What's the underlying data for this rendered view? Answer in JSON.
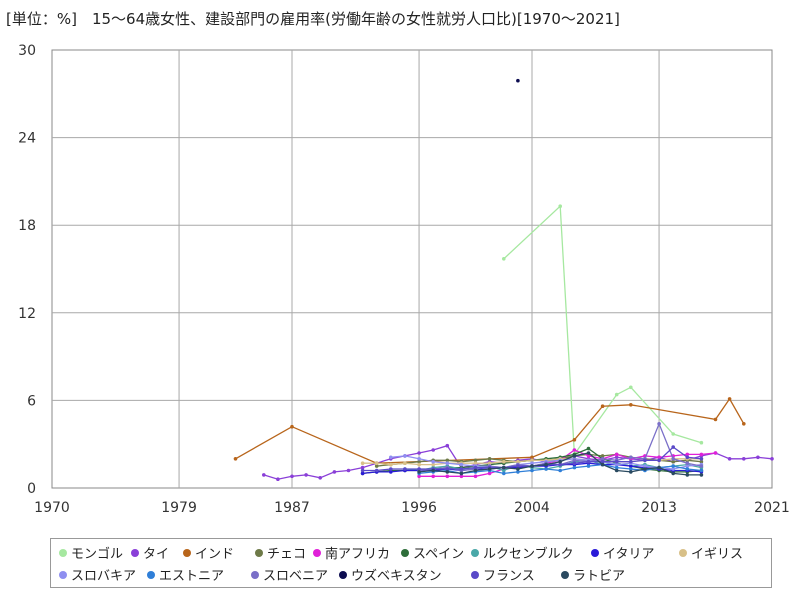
{
  "chart_data": {
    "type": "line",
    "title": "[単位：%]　15～64歳女性、建設部門の雇用率(労働年齢の女性就労人口比)[1970～2021]",
    "xlabel": "",
    "ylabel": "",
    "xlim": [
      1970,
      2021
    ],
    "ylim": [
      0,
      30
    ],
    "xticks": [
      "1970",
      "1979",
      "1987",
      "1996",
      "2004",
      "2013",
      "2021"
    ],
    "yticks": [
      "0",
      "6",
      "12",
      "18",
      "24",
      "30"
    ],
    "grid": true,
    "legend_position": "bottom",
    "series": [
      {
        "name": "モンゴル",
        "color": "#a6e8a0",
        "x": [
          2002,
          2006,
          2007,
          2010,
          2011,
          2014,
          2016
        ],
        "y": [
          15.7,
          19.3,
          2.3,
          6.4,
          6.9,
          3.7,
          3.1
        ]
      },
      {
        "name": "タイ",
        "color": "#8a3fd8",
        "x": [
          1985,
          1986,
          1987,
          1988,
          1989,
          1990,
          1991,
          1992,
          1993,
          1994,
          1995,
          1996,
          1997,
          1998,
          1999,
          2000,
          2001,
          2002,
          2003,
          2004,
          2005,
          2006,
          2007,
          2008,
          2009,
          2010,
          2011,
          2012,
          2013,
          2014,
          2015,
          2016,
          2017,
          2018,
          2019,
          2020,
          2021
        ],
        "y": [
          0.9,
          0.6,
          0.8,
          0.9,
          0.7,
          1.1,
          1.2,
          1.4,
          1.7,
          2.0,
          2.2,
          2.4,
          2.6,
          2.9,
          1.4,
          1.6,
          1.8,
          1.7,
          1.9,
          2.0,
          1.8,
          1.9,
          2.2,
          2.0,
          1.9,
          2.1,
          2.0,
          1.9,
          2.1,
          1.8,
          1.9,
          2.2,
          2.4,
          2.0,
          2.0,
          2.1,
          2.0
        ]
      },
      {
        "name": "インド",
        "color": "#b8651b",
        "x": [
          1983,
          1987,
          1993,
          2004,
          2007,
          2009,
          2011,
          2017,
          2018,
          2019
        ],
        "y": [
          2.0,
          4.2,
          1.7,
          2.1,
          3.3,
          5.6,
          5.7,
          4.7,
          6.1,
          4.4
        ]
      },
      {
        "name": "チェコ",
        "color": "#6e7a48",
        "x": [
          1993,
          1994,
          1995,
          1996,
          1997,
          1998,
          1999,
          2000,
          2001,
          2002,
          2003,
          2004,
          2005,
          2006,
          2007,
          2008,
          2009,
          2010,
          2011,
          2012,
          2013,
          2014,
          2015,
          2016
        ],
        "y": [
          1.5,
          1.6,
          1.7,
          1.8,
          1.9,
          1.9,
          1.8,
          1.9,
          2.0,
          1.9,
          1.8,
          1.9,
          1.9,
          2.0,
          2.2,
          2.3,
          2.2,
          2.3,
          2.1,
          2.0,
          1.9,
          1.8,
          1.9,
          1.8
        ]
      },
      {
        "name": "南アフリカ",
        "color": "#e020d8",
        "x": [
          1996,
          1997,
          1998,
          1999,
          2000,
          2001,
          2002,
          2003,
          2004,
          2005,
          2006,
          2007,
          2008,
          2009,
          2010,
          2011,
          2012,
          2013,
          2014,
          2015,
          2016,
          2017
        ],
        "y": [
          0.8,
          0.8,
          0.8,
          0.8,
          0.8,
          1.0,
          1.3,
          1.4,
          1.5,
          1.7,
          1.9,
          2.6,
          2.2,
          2.0,
          2.3,
          2.0,
          2.2,
          2.1,
          2.2,
          2.3,
          2.3,
          2.4
        ]
      },
      {
        "name": "スペイン",
        "color": "#2e6e3a",
        "x": [
          1992,
          1993,
          1994,
          1995,
          1996,
          1997,
          1998,
          1999,
          2000,
          2001,
          2002,
          2003,
          2004,
          2005,
          2006,
          2007,
          2008,
          2009,
          2010,
          2011,
          2012,
          2013,
          2014,
          2015,
          2016
        ],
        "y": [
          1.0,
          1.1,
          1.2,
          1.2,
          1.2,
          1.3,
          1.4,
          1.4,
          1.5,
          1.6,
          1.7,
          1.8,
          1.9,
          2.0,
          2.1,
          2.3,
          2.7,
          2.0,
          1.7,
          1.5,
          1.3,
          1.2,
          1.1,
          1.1,
          1.2
        ]
      },
      {
        "name": "ルクセンブルク",
        "color": "#4aa8a8",
        "x": [
          1995,
          1996,
          1997,
          1998,
          1999,
          2000,
          2001,
          2002,
          2003,
          2004,
          2005,
          2006,
          2007,
          2008,
          2009,
          2010,
          2011,
          2012,
          2013,
          2014,
          2015,
          2016
        ],
        "y": [
          1.3,
          1.2,
          1.4,
          1.5,
          1.3,
          1.4,
          1.5,
          1.2,
          1.6,
          1.4,
          1.3,
          1.5,
          1.8,
          1.9,
          1.6,
          1.7,
          1.5,
          1.6,
          1.4,
          1.5,
          1.6,
          1.4
        ]
      },
      {
        "name": "イタリア",
        "color": "#2a1ad8",
        "x": [
          1992,
          1993,
          1994,
          1995,
          1996,
          1997,
          1998,
          1999,
          2000,
          2001,
          2002,
          2003,
          2004,
          2005,
          2006,
          2007,
          2008,
          2009,
          2010,
          2011,
          2012,
          2013,
          2014,
          2015,
          2016
        ],
        "y": [
          1.0,
          1.1,
          1.1,
          1.2,
          1.2,
          1.2,
          1.3,
          1.2,
          1.3,
          1.3,
          1.4,
          1.4,
          1.5,
          1.5,
          1.6,
          1.6,
          1.7,
          1.6,
          1.6,
          1.5,
          1.4,
          1.3,
          1.2,
          1.2,
          1.1
        ]
      },
      {
        "name": "イギリス",
        "color": "#d8c088",
        "x": [
          1992,
          1993,
          1994,
          1995,
          1996,
          1997,
          1998,
          1999,
          2000,
          2001,
          2002,
          2003,
          2004,
          2005,
          2006,
          2007,
          2008,
          2009,
          2010,
          2011,
          2012,
          2013,
          2014,
          2015,
          2016
        ],
        "y": [
          1.7,
          1.7,
          1.6,
          1.7,
          1.6,
          1.6,
          1.7,
          1.7,
          1.7,
          1.7,
          1.8,
          1.8,
          1.9,
          1.9,
          2.0,
          2.0,
          1.9,
          1.8,
          1.8,
          1.8,
          1.9,
          1.9,
          2.0,
          2.0,
          2.0
        ]
      },
      {
        "name": "スロバキア",
        "color": "#8f8ff0",
        "x": [
          1994,
          1995,
          1996,
          1997,
          1998,
          1999,
          2000,
          2001,
          2002,
          2003,
          2004,
          2005,
          2006,
          2007,
          2008,
          2009,
          2010,
          2011,
          2012,
          2013,
          2014,
          2015,
          2016
        ],
        "y": [
          2.1,
          2.2,
          2.0,
          1.8,
          1.7,
          1.6,
          1.5,
          1.5,
          1.4,
          1.6,
          1.7,
          1.8,
          1.9,
          2.0,
          1.9,
          1.8,
          1.6,
          1.7,
          1.5,
          1.4,
          1.3,
          1.5,
          1.6
        ]
      },
      {
        "name": "エストニア",
        "color": "#2f7fd8",
        "x": [
          1996,
          1997,
          1998,
          1999,
          2000,
          2001,
          2002,
          2003,
          2004,
          2005,
          2006,
          2007,
          2008,
          2009,
          2010,
          2011,
          2012,
          2013,
          2014,
          2015,
          2016
        ],
        "y": [
          1.0,
          1.1,
          1.2,
          1.0,
          1.1,
          1.2,
          1.0,
          1.1,
          1.2,
          1.3,
          1.2,
          1.4,
          1.5,
          1.6,
          1.4,
          1.3,
          1.2,
          1.4,
          1.5,
          1.3,
          1.2
        ]
      },
      {
        "name": "スロベニア",
        "color": "#7a6fc8",
        "x": [
          1996,
          1997,
          1998,
          1999,
          2000,
          2001,
          2002,
          2003,
          2004,
          2005,
          2006,
          2007,
          2008,
          2009,
          2010,
          2011,
          2012,
          2013,
          2014,
          2015,
          2016
        ],
        "y": [
          1.2,
          1.3,
          1.4,
          1.2,
          1.3,
          1.5,
          1.4,
          1.6,
          1.5,
          1.7,
          1.6,
          1.9,
          1.8,
          2.0,
          1.9,
          2.1,
          2.0,
          4.4,
          2.0,
          1.7,
          1.5
        ]
      },
      {
        "name": "ウズベキスタン",
        "color": "#0c0c50",
        "x": [
          2003
        ],
        "y": [
          27.9
        ]
      },
      {
        "name": "フランス",
        "color": "#5a4ac8",
        "x": [
          1992,
          1993,
          1994,
          1995,
          1996,
          1997,
          1998,
          1999,
          2000,
          2001,
          2002,
          2003,
          2004,
          2005,
          2006,
          2007,
          2008,
          2009,
          2010,
          2011,
          2012,
          2013,
          2014,
          2015,
          2016
        ],
        "y": [
          1.2,
          1.2,
          1.3,
          1.3,
          1.3,
          1.3,
          1.3,
          1.3,
          1.4,
          1.4,
          1.4,
          1.5,
          1.5,
          1.6,
          1.6,
          1.7,
          1.8,
          1.8,
          1.8,
          1.8,
          1.9,
          1.9,
          2.8,
          2.1,
          2.0
        ]
      },
      {
        "name": "ラトビア",
        "color": "#2a4a60",
        "x": [
          1996,
          1997,
          1998,
          1999,
          2000,
          2001,
          2002,
          2003,
          2004,
          2005,
          2006,
          2007,
          2008,
          2009,
          2010,
          2011,
          2012,
          2013,
          2014,
          2015,
          2016
        ],
        "y": [
          1.1,
          1.2,
          1.1,
          1.0,
          1.2,
          1.3,
          1.4,
          1.3,
          1.5,
          1.6,
          1.8,
          2.2,
          2.4,
          1.6,
          1.2,
          1.1,
          1.3,
          1.4,
          1.0,
          0.9,
          0.9
        ]
      }
    ]
  }
}
